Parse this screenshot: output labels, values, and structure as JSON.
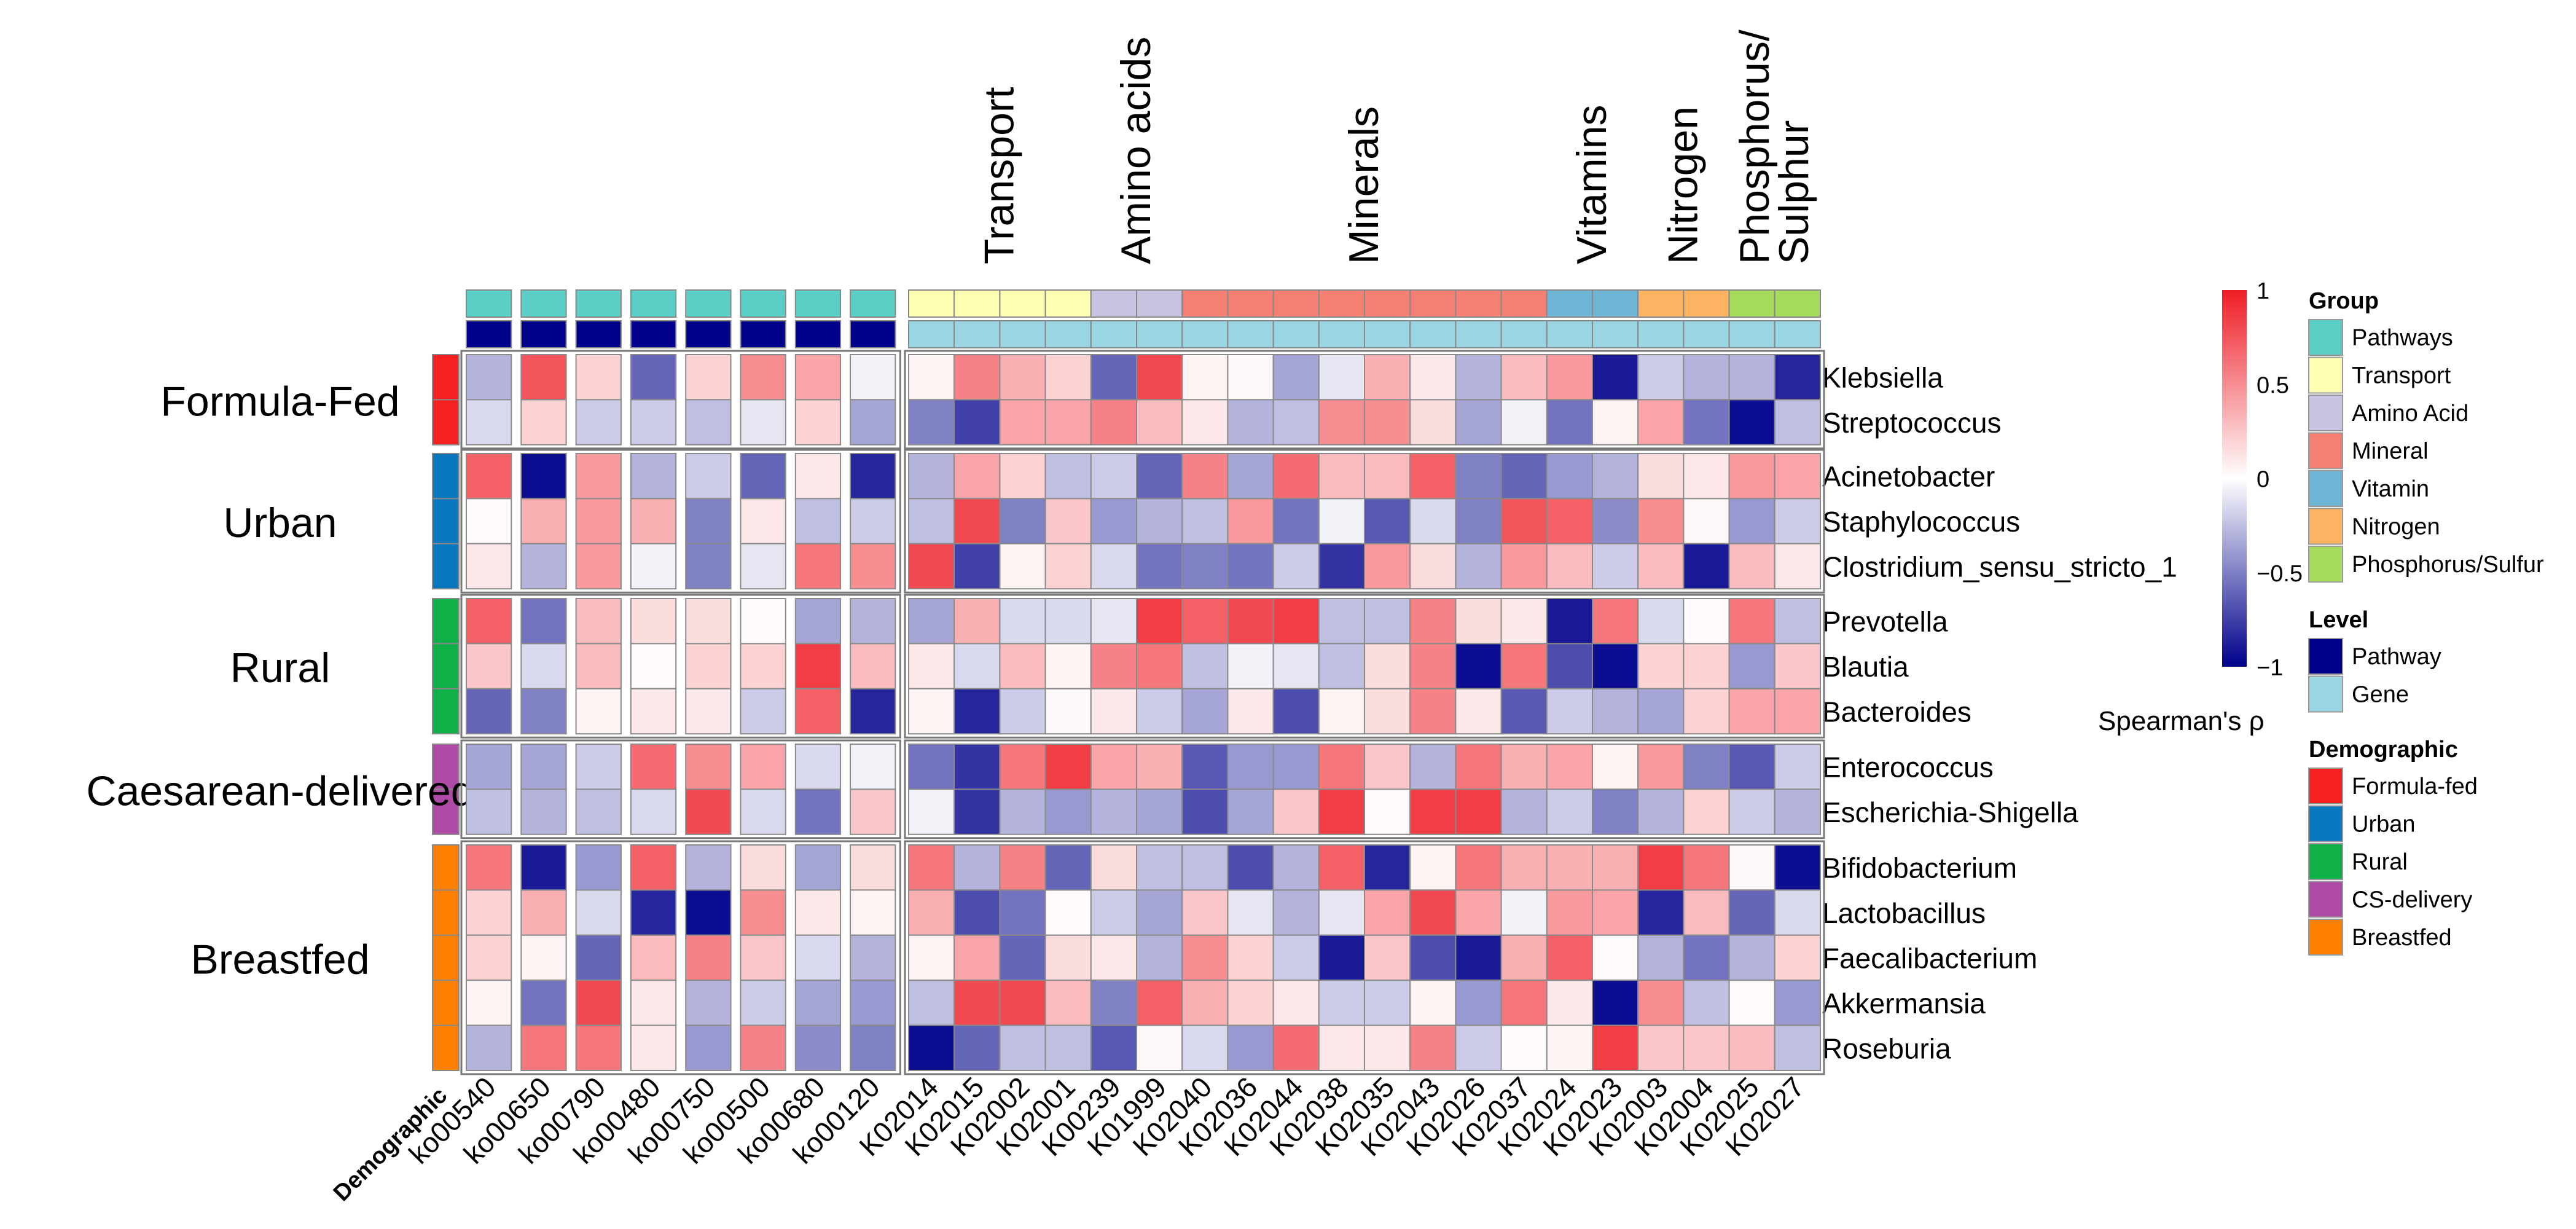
{
  "chart_data": {
    "type": "heatmap",
    "title": "",
    "value_scale": {
      "title": "Spearman's ρ",
      "min": -1,
      "max": 1,
      "ticks": [
        "1",
        "0.5",
        "0",
        "−0.5",
        "−1"
      ],
      "tick_values": [
        1,
        0.5,
        0,
        -0.5,
        -1
      ],
      "colors": {
        "low": "#00008B",
        "mid": "#FFFFFF",
        "high": "#EE1C25"
      }
    },
    "columns": [
      "ko00540",
      "ko00650",
      "ko00790",
      "ko00480",
      "ko00750",
      "ko00500",
      "ko00680",
      "ko00120",
      "K02014",
      "K02015",
      "K02002",
      "K02001",
      "K00239",
      "K01999",
      "K02040",
      "K02036",
      "K02044",
      "K02038",
      "K02035",
      "K02043",
      "K02026",
      "K02037",
      "K02024",
      "K02023",
      "K02003",
      "K02004",
      "K02025",
      "K02027"
    ],
    "column_group": [
      "Pathways",
      "Pathways",
      "Pathways",
      "Pathways",
      "Pathways",
      "Pathways",
      "Pathways",
      "Pathways",
      "Transport",
      "Transport",
      "Transport",
      "Transport",
      "Amino Acid",
      "Amino Acid",
      "Mineral",
      "Mineral",
      "Mineral",
      "Mineral",
      "Mineral",
      "Mineral",
      "Mineral",
      "Mineral",
      "Vitamin",
      "Vitamin",
      "Nitrogen",
      "Nitrogen",
      "Phosphorus/Sulfur",
      "Phosphorus/Sulfur"
    ],
    "column_level": [
      "Pathway",
      "Pathway",
      "Pathway",
      "Pathway",
      "Pathway",
      "Pathway",
      "Pathway",
      "Pathway",
      "Gene",
      "Gene",
      "Gene",
      "Gene",
      "Gene",
      "Gene",
      "Gene",
      "Gene",
      "Gene",
      "Gene",
      "Gene",
      "Gene",
      "Gene",
      "Gene",
      "Gene",
      "Gene",
      "Gene",
      "Gene",
      "Gene",
      "Gene"
    ],
    "row_demographic_label": "Demographic",
    "column_split_titles": [
      {
        "text": [
          "Transport"
        ],
        "from_col": 8,
        "to_col": 11
      },
      {
        "text": [
          "Amino acids"
        ],
        "from_col": 12,
        "to_col": 13
      },
      {
        "text": [
          "Minerals"
        ],
        "from_col": 14,
        "to_col": 21
      },
      {
        "text": [
          "Vitamins"
        ],
        "from_col": 22,
        "to_col": 23
      },
      {
        "text": [
          "Nitrogen"
        ],
        "from_col": 24,
        "to_col": 25
      },
      {
        "text": [
          "Phosphorus/",
          "Sulphur"
        ],
        "from_col": 26,
        "to_col": 27
      }
    ],
    "row_groups": [
      {
        "label": "Formula-Fed",
        "demographic": "Formula-fed",
        "rows": [
          {
            "name": "Klebsiella",
            "values": [
              -0.3,
              0.75,
              0.2,
              -0.6,
              0.2,
              0.5,
              0.4,
              -0.05,
              0.05,
              0.55,
              0.35,
              0.2,
              -0.6,
              0.8,
              0.05,
              0.03,
              -0.35,
              -0.1,
              0.35,
              0.1,
              -0.3,
              0.3,
              0.45,
              -0.9,
              -0.2,
              -0.3,
              -0.3,
              -0.85
            ]
          },
          {
            "name": "Streptococcus",
            "values": [
              -0.15,
              0.2,
              -0.2,
              -0.2,
              -0.25,
              -0.1,
              0.2,
              -0.35,
              -0.5,
              -0.75,
              0.4,
              0.4,
              0.55,
              0.3,
              0.1,
              -0.3,
              -0.25,
              0.5,
              0.5,
              0.15,
              -0.35,
              -0.05,
              -0.55,
              0.05,
              0.4,
              -0.55,
              -0.95,
              -0.25
            ]
          }
        ]
      },
      {
        "label": "Urban",
        "demographic": "Urban",
        "rows": [
          {
            "name": "Acinetobacter",
            "values": [
              0.7,
              -0.95,
              0.45,
              -0.3,
              -0.2,
              -0.6,
              0.1,
              -0.85,
              -0.3,
              0.4,
              0.2,
              -0.25,
              -0.2,
              -0.6,
              0.55,
              -0.35,
              0.65,
              0.3,
              0.3,
              0.7,
              -0.5,
              -0.6,
              -0.4,
              -0.3,
              0.15,
              0.1,
              0.45,
              0.4
            ]
          },
          {
            "name": "Staphylococcus",
            "values": [
              0.02,
              0.35,
              0.45,
              0.35,
              -0.5,
              0.1,
              -0.25,
              -0.2,
              -0.25,
              0.8,
              -0.5,
              0.25,
              -0.4,
              -0.3,
              -0.25,
              0.45,
              -0.55,
              -0.05,
              -0.65,
              -0.15,
              -0.5,
              0.75,
              0.7,
              -0.45,
              0.5,
              0.03,
              -0.4,
              -0.2
            ]
          },
          {
            "name": "Clostridium_sensu_stricto_1",
            "values": [
              0.1,
              -0.3,
              0.45,
              -0.05,
              -0.5,
              -0.1,
              0.6,
              0.5,
              0.8,
              -0.75,
              0.05,
              0.2,
              -0.15,
              -0.55,
              -0.5,
              -0.55,
              -0.2,
              -0.8,
              0.45,
              0.15,
              -0.3,
              0.45,
              0.3,
              -0.2,
              0.3,
              -0.9,
              0.3,
              0.1
            ]
          }
        ]
      },
      {
        "label": "Rural",
        "demographic": "Rural",
        "rows": [
          {
            "name": "Prevotella",
            "values": [
              0.7,
              -0.55,
              0.3,
              0.15,
              0.15,
              0.02,
              -0.35,
              -0.3,
              -0.35,
              0.35,
              -0.15,
              -0.15,
              -0.1,
              0.85,
              0.7,
              0.8,
              0.85,
              -0.25,
              -0.25,
              0.55,
              0.15,
              0.1,
              -0.9,
              0.6,
              -0.15,
              0.02,
              0.6,
              -0.25
            ]
          },
          {
            "name": "Blautia",
            "values": [
              0.25,
              -0.15,
              0.3,
              0.02,
              0.2,
              0.2,
              0.85,
              0.3,
              0.1,
              -0.15,
              0.3,
              0.05,
              0.55,
              0.6,
              -0.25,
              -0.05,
              -0.1,
              -0.25,
              0.15,
              0.55,
              -0.95,
              0.6,
              -0.7,
              -0.95,
              0.2,
              0.2,
              -0.4,
              0.25
            ]
          },
          {
            "name": "Bacteroides",
            "values": [
              -0.6,
              -0.5,
              0.05,
              0.1,
              0.1,
              -0.2,
              0.7,
              -0.85,
              0.05,
              -0.85,
              -0.2,
              0.03,
              0.1,
              -0.2,
              -0.35,
              0.1,
              -0.7,
              0.05,
              0.15,
              0.55,
              0.1,
              -0.65,
              -0.2,
              -0.3,
              -0.35,
              0.2,
              0.4,
              0.4
            ]
          }
        ]
      },
      {
        "label": "Caesarean-delivered",
        "demographic": "CS-delivery",
        "rows": [
          {
            "name": "Enterococcus",
            "values": [
              -0.35,
              -0.35,
              -0.2,
              0.65,
              0.5,
              0.4,
              -0.15,
              -0.05,
              -0.55,
              -0.8,
              0.6,
              0.85,
              0.4,
              0.35,
              -0.65,
              -0.4,
              -0.4,
              0.6,
              0.25,
              -0.3,
              0.6,
              0.35,
              0.4,
              0.05,
              0.45,
              -0.5,
              -0.65,
              -0.2
            ]
          },
          {
            "name": "Escherichia-Shigella",
            "values": [
              -0.25,
              -0.3,
              -0.25,
              -0.15,
              0.8,
              -0.15,
              -0.55,
              0.25,
              -0.05,
              -0.8,
              -0.3,
              -0.4,
              -0.3,
              -0.35,
              -0.7,
              -0.35,
              0.25,
              0.85,
              0.02,
              0.85,
              0.85,
              -0.3,
              -0.2,
              -0.5,
              -0.3,
              0.2,
              -0.2,
              -0.3
            ]
          }
        ]
      },
      {
        "label": "Breastfed",
        "demographic": "Breastfed",
        "rows": [
          {
            "name": "Bifidobacterium",
            "values": [
              0.6,
              -0.9,
              -0.4,
              0.7,
              -0.3,
              0.15,
              -0.35,
              0.15,
              0.6,
              -0.3,
              0.55,
              -0.6,
              0.15,
              -0.25,
              -0.25,
              -0.7,
              -0.3,
              0.7,
              -0.85,
              0.05,
              0.6,
              0.35,
              0.35,
              0.35,
              0.85,
              0.6,
              0.03,
              -0.95
            ]
          },
          {
            "name": "Lactobacillus",
            "values": [
              0.2,
              0.35,
              -0.15,
              -0.85,
              -0.95,
              0.5,
              0.1,
              0.05,
              0.35,
              -0.7,
              -0.55,
              0.02,
              -0.2,
              -0.35,
              0.25,
              -0.1,
              -0.3,
              -0.1,
              0.4,
              0.8,
              0.4,
              -0.05,
              0.45,
              0.4,
              -0.85,
              0.3,
              -0.6,
              -0.15
            ]
          },
          {
            "name": "Faecalibacterium",
            "values": [
              0.2,
              0.05,
              -0.6,
              0.3,
              0.55,
              0.25,
              -0.15,
              -0.3,
              0.05,
              0.4,
              -0.6,
              0.15,
              0.1,
              -0.3,
              0.5,
              0.2,
              -0.2,
              -0.9,
              0.25,
              -0.7,
              -0.9,
              0.35,
              0.7,
              0.02,
              -0.3,
              -0.55,
              -0.3,
              0.2
            ]
          },
          {
            "name": "Akkermansia",
            "values": [
              0.05,
              -0.55,
              0.8,
              0.1,
              -0.3,
              -0.2,
              -0.35,
              -0.4,
              -0.25,
              0.8,
              0.8,
              0.3,
              -0.5,
              0.7,
              0.35,
              0.2,
              0.1,
              -0.2,
              -0.2,
              0.05,
              -0.4,
              0.6,
              0.1,
              -0.95,
              0.5,
              -0.25,
              0.02,
              -0.4
            ]
          },
          {
            "name": "Roseburia",
            "values": [
              -0.3,
              0.6,
              0.6,
              0.1,
              -0.4,
              0.55,
              -0.45,
              -0.5,
              -0.95,
              -0.6,
              -0.25,
              -0.25,
              -0.65,
              0.03,
              -0.15,
              -0.4,
              0.65,
              0.1,
              0.1,
              0.55,
              -0.2,
              0.02,
              0.05,
              0.85,
              0.25,
              0.25,
              0.3,
              -0.25
            ]
          }
        ]
      }
    ],
    "legends": {
      "group": {
        "title": "Group",
        "items": [
          {
            "label": "Pathways",
            "color": "#5BCFC6"
          },
          {
            "label": "Transport",
            "color": "#FFFFB3"
          },
          {
            "label": "Amino Acid",
            "color": "#C9C2E0"
          },
          {
            "label": "Mineral",
            "color": "#F57F72"
          },
          {
            "label": "Vitamin",
            "color": "#6FB5D5"
          },
          {
            "label": "Nitrogen",
            "color": "#FDB462"
          },
          {
            "label": "Phosphorus/Sulfur",
            "color": "#A6DC5E"
          }
        ]
      },
      "level": {
        "title": "Level",
        "items": [
          {
            "label": "Pathway",
            "color": "#00008B"
          },
          {
            "label": "Gene",
            "color": "#9AD5E3"
          }
        ]
      },
      "demographic": {
        "title": "Demographic",
        "items": [
          {
            "label": "Formula-fed",
            "color": "#F52020"
          },
          {
            "label": "Urban",
            "color": "#0A78BE"
          },
          {
            "label": "Rural",
            "color": "#10B048"
          },
          {
            "label": "CS-delivery",
            "color": "#AE4BA6"
          },
          {
            "label": "Breastfed",
            "color": "#FF8000"
          }
        ]
      }
    }
  }
}
